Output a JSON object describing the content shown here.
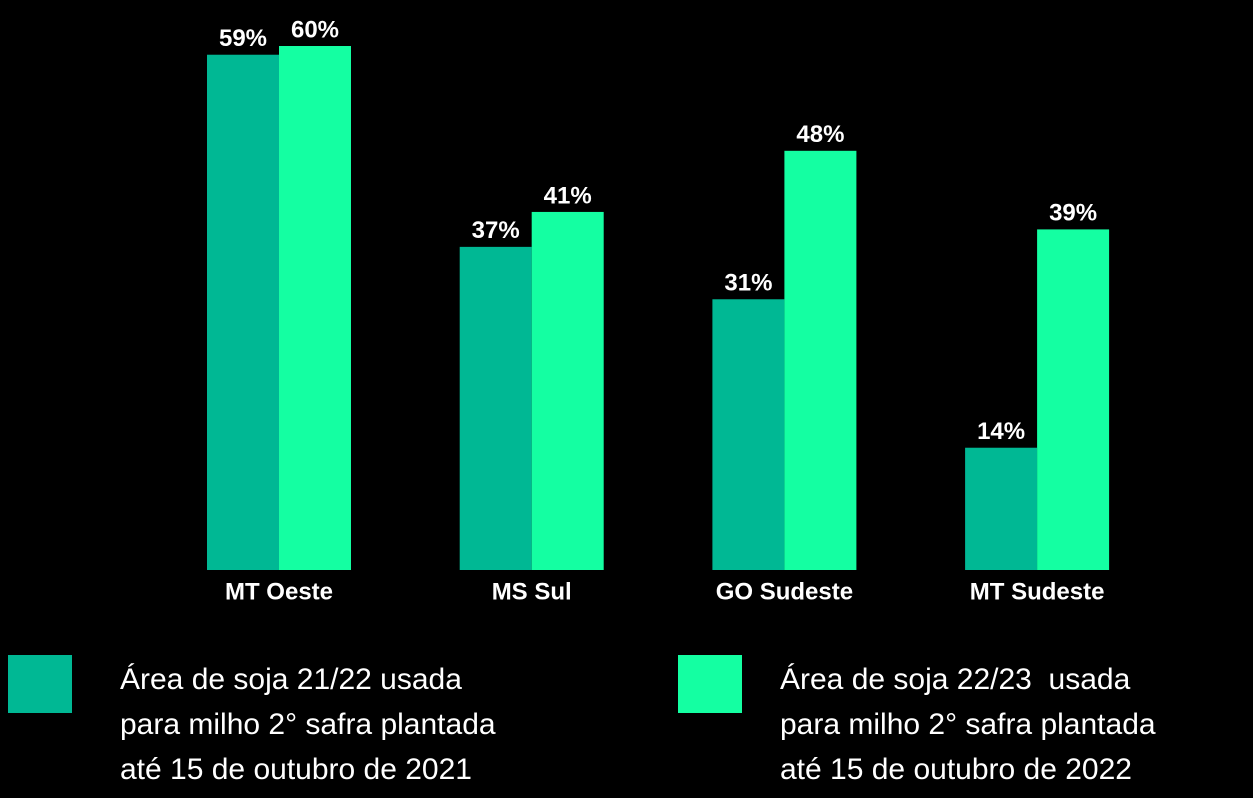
{
  "chart_data": {
    "type": "bar",
    "categories": [
      "MT Oeste",
      "MS Sul",
      "GO Sudeste",
      "MT Sudeste"
    ],
    "series": [
      {
        "name": "Área de soja 21/22 usada\npara milho 2° safra plantada\naté 15 de outubro de 2021",
        "color": "#00b894",
        "values": [
          59,
          37,
          31,
          14
        ],
        "value_labels": [
          "59%",
          "37%",
          "31%",
          "14%"
        ]
      },
      {
        "name": "Área de soja 22/23  usada\npara milho 2° safra plantada\naté 15 de outubro de 2022",
        "color": "#14ffa2",
        "values": [
          60,
          41,
          48,
          39
        ],
        "value_labels": [
          "60%",
          "41%",
          "48%",
          "39%"
        ]
      }
    ]
  }
}
